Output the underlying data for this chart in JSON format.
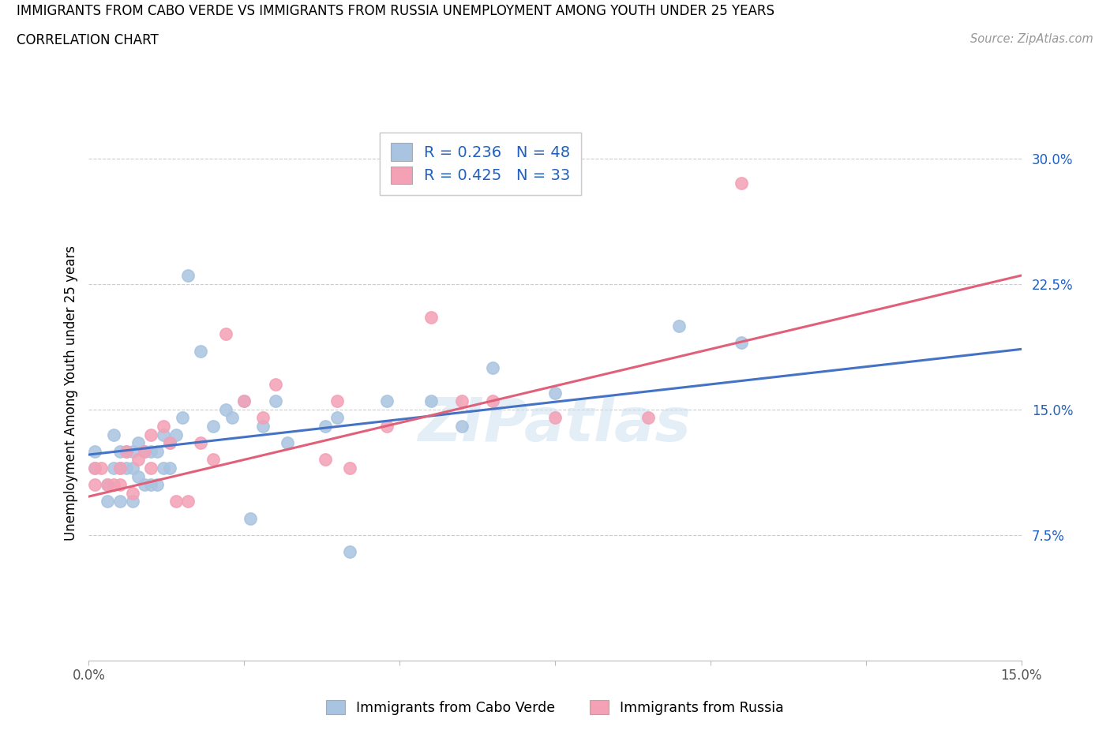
{
  "title_line1": "IMMIGRANTS FROM CABO VERDE VS IMMIGRANTS FROM RUSSIA UNEMPLOYMENT AMONG YOUTH UNDER 25 YEARS",
  "title_line2": "CORRELATION CHART",
  "source_text": "Source: ZipAtlas.com",
  "ylabel": "Unemployment Among Youth under 25 years",
  "xlim": [
    0.0,
    0.15
  ],
  "ylim": [
    0.0,
    0.32
  ],
  "yticks": [
    0.0,
    0.075,
    0.15,
    0.225,
    0.3
  ],
  "ytick_labels": [
    "",
    "7.5%",
    "15.0%",
    "22.5%",
    "30.0%"
  ],
  "xticks": [
    0.0,
    0.025,
    0.05,
    0.075,
    0.1,
    0.125,
    0.15
  ],
  "xtick_labels": [
    "0.0%",
    "",
    "",
    "",
    "",
    "",
    "15.0%"
  ],
  "legend_R_blue": "0.236",
  "legend_N_blue": "48",
  "legend_R_pink": "0.425",
  "legend_N_pink": "33",
  "blue_color": "#a8c4e0",
  "pink_color": "#f4a0b5",
  "blue_line_color": "#4472c4",
  "pink_line_color": "#e0607a",
  "text_color_blue": "#2060c0",
  "watermark": "ZIPatlas",
  "cabo_verde_x": [
    0.001,
    0.001,
    0.003,
    0.003,
    0.004,
    0.004,
    0.005,
    0.005,
    0.005,
    0.006,
    0.006,
    0.007,
    0.007,
    0.007,
    0.008,
    0.008,
    0.009,
    0.009,
    0.01,
    0.01,
    0.011,
    0.011,
    0.012,
    0.012,
    0.013,
    0.013,
    0.014,
    0.015,
    0.016,
    0.018,
    0.02,
    0.022,
    0.023,
    0.025,
    0.026,
    0.028,
    0.03,
    0.032,
    0.038,
    0.04,
    0.042,
    0.048,
    0.055,
    0.06,
    0.065,
    0.075,
    0.095,
    0.105
  ],
  "cabo_verde_y": [
    0.125,
    0.115,
    0.105,
    0.095,
    0.135,
    0.115,
    0.125,
    0.115,
    0.095,
    0.125,
    0.115,
    0.125,
    0.115,
    0.095,
    0.13,
    0.11,
    0.125,
    0.105,
    0.125,
    0.105,
    0.125,
    0.105,
    0.135,
    0.115,
    0.13,
    0.115,
    0.135,
    0.145,
    0.23,
    0.185,
    0.14,
    0.15,
    0.145,
    0.155,
    0.085,
    0.14,
    0.155,
    0.13,
    0.14,
    0.145,
    0.065,
    0.155,
    0.155,
    0.14,
    0.175,
    0.16,
    0.2,
    0.19
  ],
  "russia_x": [
    0.001,
    0.001,
    0.002,
    0.003,
    0.004,
    0.005,
    0.005,
    0.006,
    0.007,
    0.008,
    0.009,
    0.01,
    0.01,
    0.012,
    0.013,
    0.014,
    0.016,
    0.018,
    0.02,
    0.022,
    0.025,
    0.028,
    0.03,
    0.038,
    0.04,
    0.042,
    0.048,
    0.055,
    0.06,
    0.065,
    0.075,
    0.09,
    0.105
  ],
  "russia_y": [
    0.115,
    0.105,
    0.115,
    0.105,
    0.105,
    0.115,
    0.105,
    0.125,
    0.1,
    0.12,
    0.125,
    0.135,
    0.115,
    0.14,
    0.13,
    0.095,
    0.095,
    0.13,
    0.12,
    0.195,
    0.155,
    0.145,
    0.165,
    0.12,
    0.155,
    0.115,
    0.14,
    0.205,
    0.155,
    0.155,
    0.145,
    0.145,
    0.285
  ],
  "blue_intercept": 0.123,
  "blue_slope": 0.42,
  "pink_intercept": 0.098,
  "pink_slope": 0.88
}
